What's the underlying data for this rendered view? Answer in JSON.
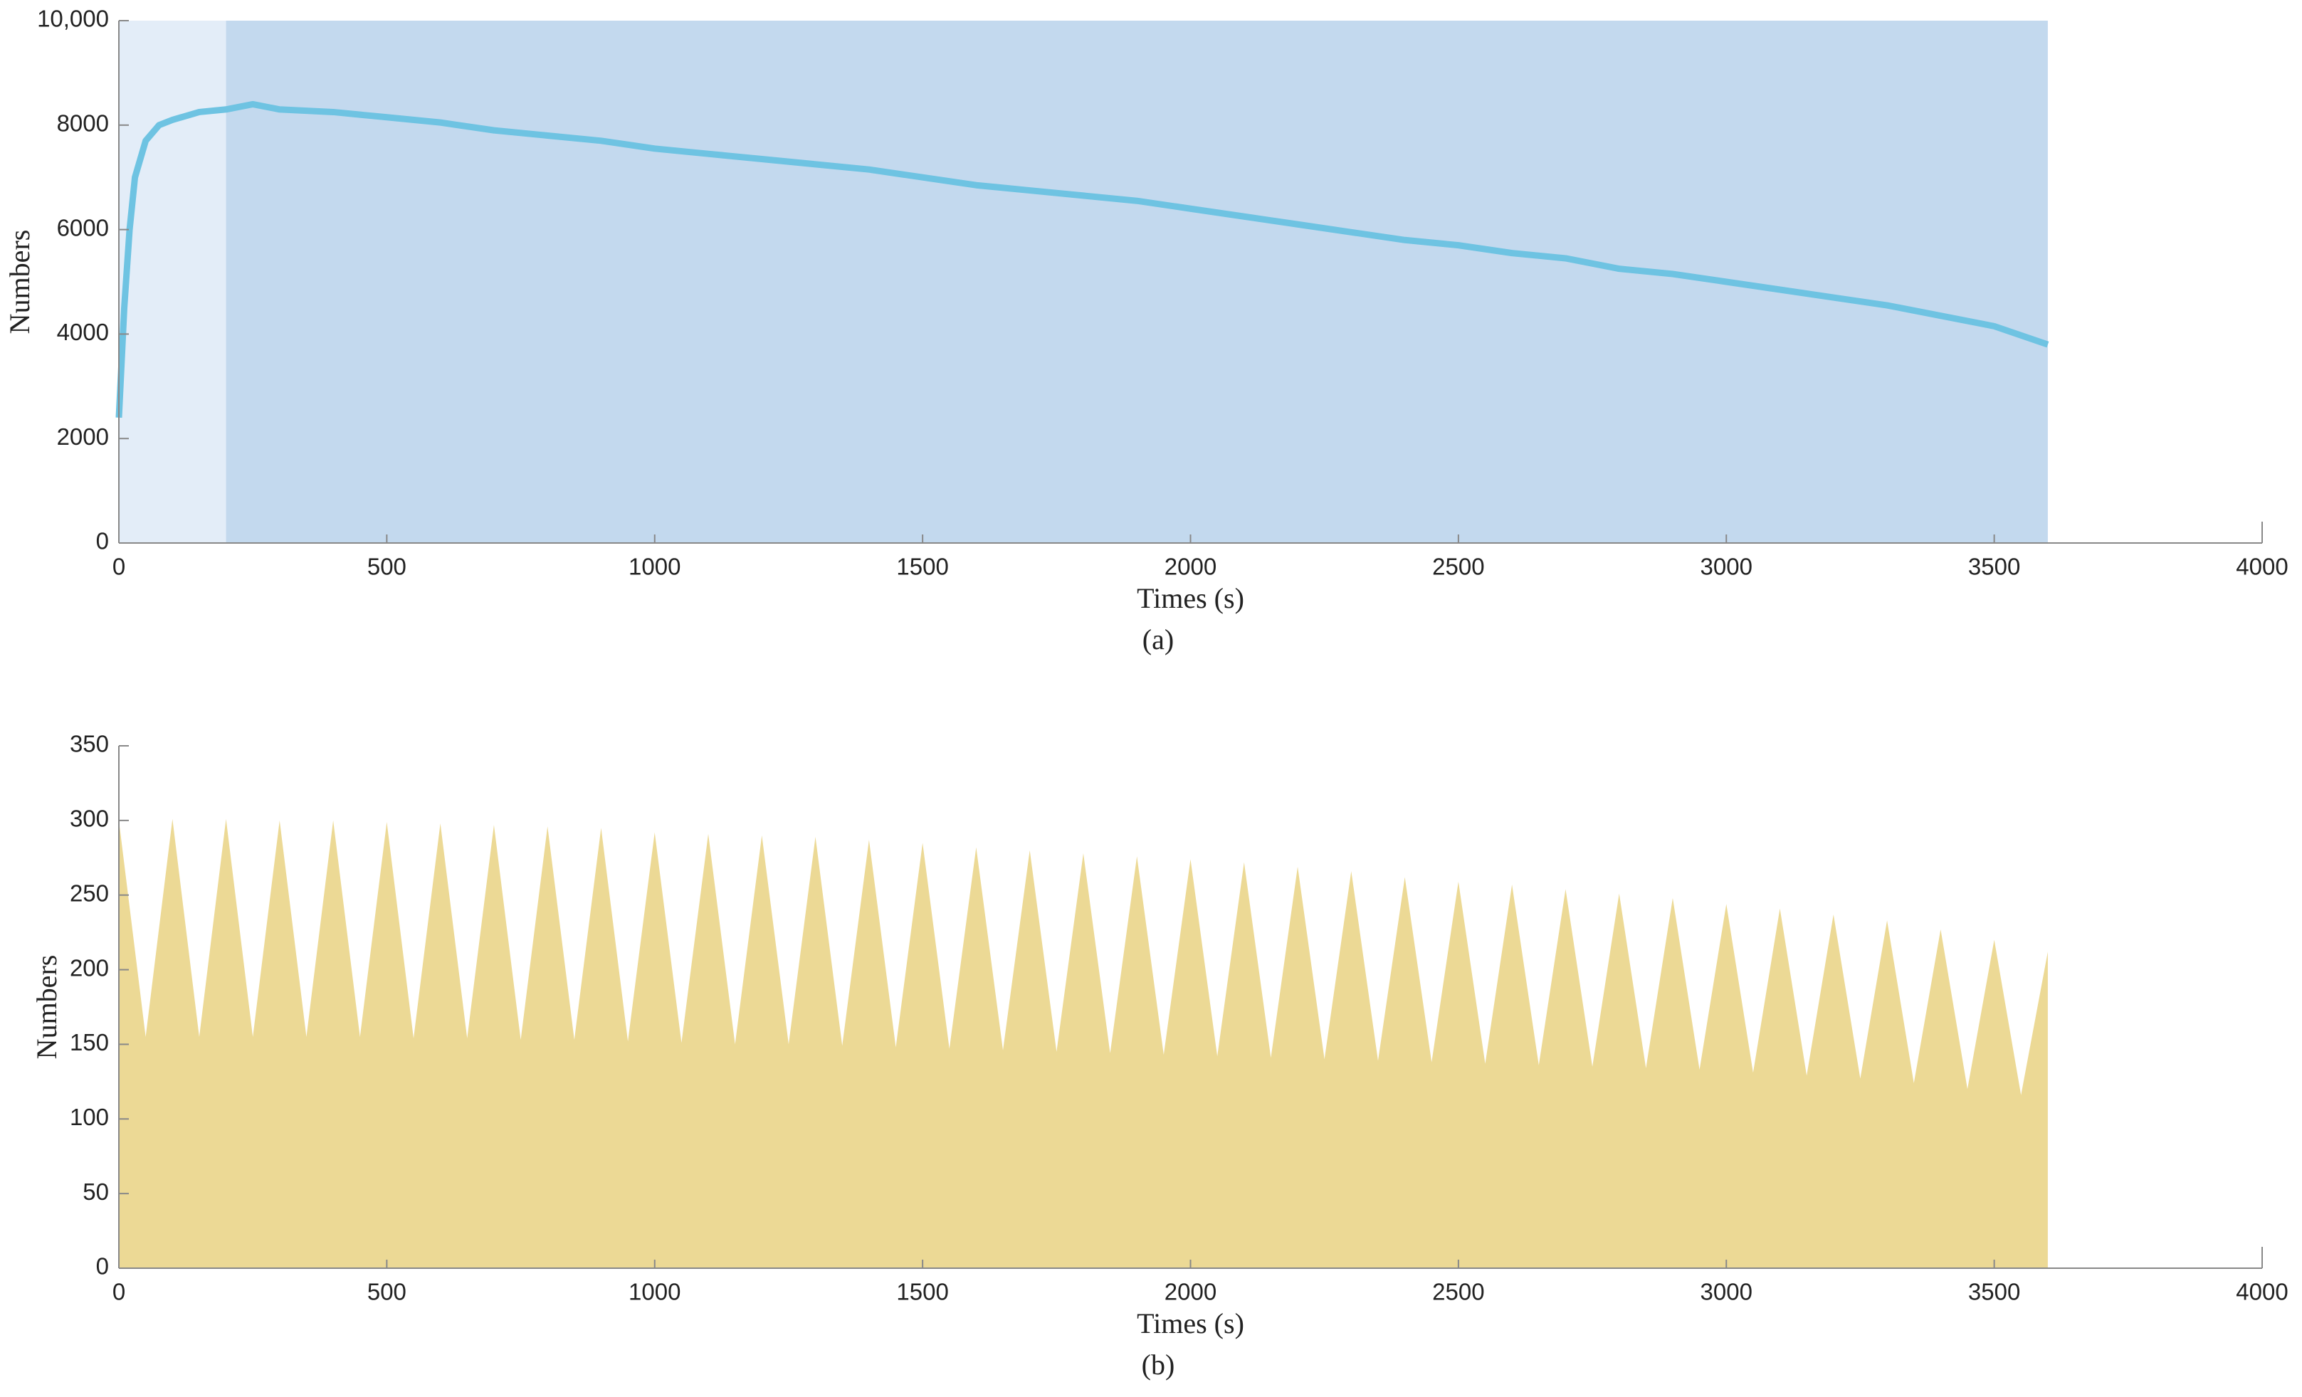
{
  "chart_data": [
    {
      "type": "line",
      "caption": "(a)",
      "xlabel": "Times (s)",
      "ylabel": "Numbers",
      "xlim": [
        0,
        4000
      ],
      "xticks": [
        0,
        500,
        1000,
        1500,
        2000,
        2500,
        3000,
        3500,
        4000
      ],
      "ylim": [
        0,
        10000
      ],
      "yticks": [
        0,
        2000,
        4000,
        6000,
        8000,
        {
          "value": 10000,
          "label": "10,000"
        }
      ],
      "spans": [
        {
          "range": [
            0,
            200
          ],
          "color": "#e3edf8"
        },
        {
          "range": [
            200,
            3600
          ],
          "color": "#c3d9ee"
        }
      ],
      "series": [
        {
          "color": "#6ec3e2",
          "x": [
            0,
            10,
            20,
            30,
            50,
            75,
            100,
            150,
            200,
            250,
            300,
            400,
            500,
            600,
            700,
            800,
            900,
            1000,
            1100,
            1200,
            1300,
            1400,
            1500,
            1600,
            1700,
            1800,
            1900,
            2000,
            2100,
            2200,
            2300,
            2400,
            2500,
            2600,
            2700,
            2800,
            2900,
            3000,
            3100,
            3200,
            3300,
            3400,
            3500,
            3600
          ],
          "values": [
            2400,
            4500,
            6000,
            7000,
            7700,
            8000,
            8100,
            8250,
            8300,
            8400,
            8300,
            8250,
            8150,
            8050,
            7900,
            7800,
            7700,
            7550,
            7450,
            7350,
            7250,
            7150,
            7000,
            6850,
            6750,
            6650,
            6550,
            6400,
            6250,
            6100,
            5950,
            5800,
            5700,
            5550,
            5450,
            5250,
            5150,
            5000,
            4850,
            4700,
            4550,
            4350,
            4150,
            3800
          ]
        }
      ]
    },
    {
      "type": "area",
      "caption": "(b)",
      "xlabel": "Times (s)",
      "ylabel": "Numbers",
      "xlim": [
        0,
        4000
      ],
      "xticks": [
        0,
        500,
        1000,
        1500,
        2000,
        2500,
        3000,
        3500,
        4000
      ],
      "ylim": [
        0,
        350
      ],
      "yticks": [
        0,
        50,
        100,
        150,
        200,
        250,
        300,
        350
      ],
      "series": [
        {
          "color": "#ecd995",
          "x": [
            0,
            50,
            100,
            150,
            200,
            250,
            300,
            350,
            400,
            450,
            500,
            550,
            600,
            650,
            700,
            750,
            800,
            850,
            900,
            950,
            1000,
            1050,
            1100,
            1150,
            1200,
            1250,
            1300,
            1350,
            1400,
            1450,
            1500,
            1550,
            1600,
            1650,
            1700,
            1750,
            1800,
            1850,
            1900,
            1950,
            2000,
            2050,
            2100,
            2150,
            2200,
            2250,
            2300,
            2350,
            2400,
            2450,
            2500,
            2550,
            2600,
            2650,
            2700,
            2750,
            2800,
            2850,
            2900,
            2950,
            3000,
            3050,
            3100,
            3150,
            3200,
            3250,
            3300,
            3350,
            3400,
            3450,
            3500,
            3550,
            3600
          ],
          "values": [
            300,
            155,
            301,
            155,
            301,
            155,
            300,
            155,
            300,
            155,
            299,
            154,
            298,
            154,
            297,
            153,
            296,
            153,
            295,
            152,
            292,
            151,
            291,
            150,
            290,
            150,
            289,
            149,
            287,
            148,
            285,
            147,
            282,
            146,
            280,
            145,
            278,
            144,
            276,
            143,
            274,
            142,
            272,
            141,
            269,
            140,
            266,
            139,
            262,
            138,
            259,
            137,
            257,
            136,
            254,
            135,
            251,
            134,
            248,
            133,
            244,
            131,
            241,
            129,
            237,
            127,
            233,
            124,
            227,
            120,
            220,
            116,
            212
          ]
        }
      ]
    }
  ]
}
